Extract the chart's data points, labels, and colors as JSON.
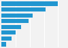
{
  "values": [
    100,
    78,
    55,
    48,
    35,
    25,
    18,
    8
  ],
  "bar_color": "#2196d0",
  "background_color": "#f2f2f2",
  "plot_bg_color": "#f2f2f2",
  "grid_color": "#ffffff",
  "bar_height": 0.75,
  "xlim": [
    0,
    115
  ]
}
